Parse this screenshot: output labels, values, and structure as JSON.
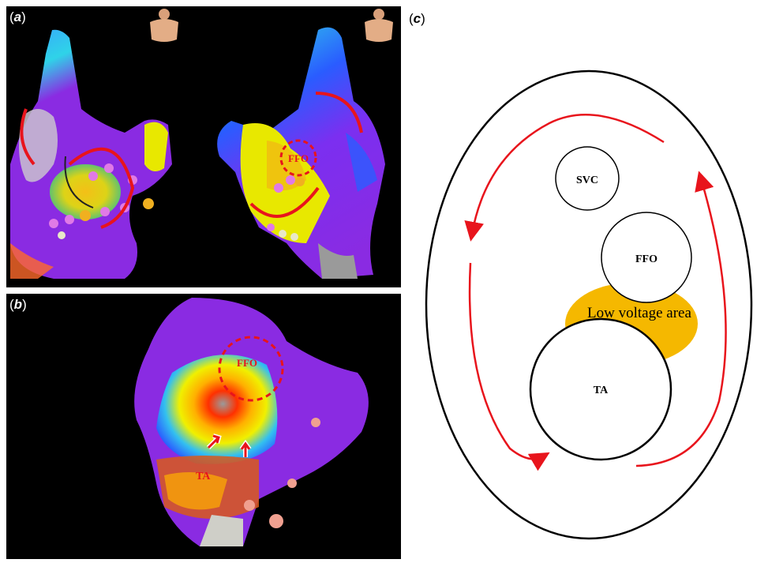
{
  "panel_labels": {
    "a": {
      "open": "(",
      "letter": "a",
      "close": ")"
    },
    "b": {
      "open": "(",
      "letter": "b",
      "close": ")"
    },
    "c": {
      "open": "(",
      "letter": "c",
      "close": ")"
    }
  },
  "panel_a": {
    "right_view_annotation": "FFO"
  },
  "panel_b": {
    "top_annotation": "FFO",
    "ta_annotation": "TA"
  },
  "panel_c": {
    "svc_label": "SVC",
    "ffo_label": "FFO",
    "low_voltage_label": "Low voltage area",
    "ta_label": "TA"
  },
  "colors": {
    "arrow_red": "#e8141c",
    "low_voltage_area": "#f5b800",
    "map_purple": "#8a2be2",
    "background_dark": "#000000"
  },
  "icons": [
    "torso-icon",
    "curved-arrow-icon",
    "red-arrow-icon"
  ]
}
